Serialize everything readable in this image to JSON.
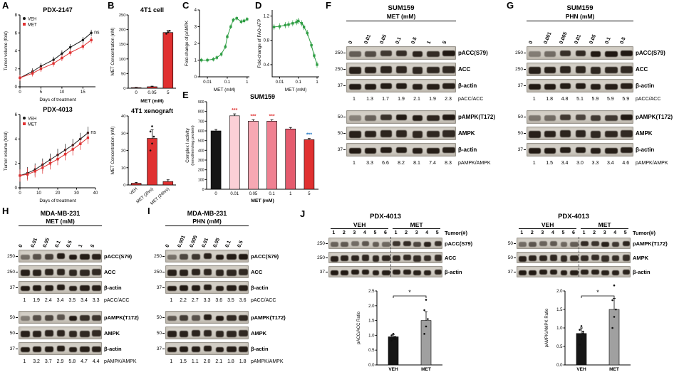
{
  "panels": {
    "A": {
      "label": "A",
      "charts": [
        {
          "type": "line",
          "title": "PDX-2147",
          "ylabel": "Tumor volume (fold)",
          "xlabel": "Days of treatment",
          "annotation": "ns",
          "xlim": [
            0,
            18
          ],
          "ylim": [
            0,
            8
          ],
          "xticks": [
            0,
            5,
            10,
            15
          ],
          "yticks": [
            0,
            2,
            4,
            6,
            8
          ],
          "x": [
            0,
            3,
            5,
            8,
            10,
            12,
            15,
            17
          ],
          "series": [
            {
              "name": "VEH",
              "color": "#1a1a1a",
              "marker": "circle",
              "err": 0.35,
              "values": [
                1,
                1.7,
                2.3,
                3.0,
                3.7,
                4.4,
                5.2,
                6.0
              ]
            },
            {
              "name": "MET",
              "color": "#e03131",
              "marker": "square",
              "err": 0.35,
              "values": [
                1,
                1.5,
                2.0,
                2.6,
                3.2,
                3.8,
                4.5,
                5.2
              ]
            }
          ]
        },
        {
          "type": "line",
          "title": "PDX-4013",
          "ylabel": "Tumor volume (fold)",
          "xlabel": "Days of treatment",
          "annotation": "ns",
          "xlim": [
            0,
            40
          ],
          "ylim": [
            0,
            6
          ],
          "xticks": [
            0,
            10,
            20,
            30,
            40
          ],
          "yticks": [
            0,
            2,
            4,
            6
          ],
          "x": [
            0,
            4,
            8,
            12,
            16,
            20,
            24,
            28,
            32,
            36
          ],
          "series": [
            {
              "name": "VEH",
              "color": "#1a1a1a",
              "marker": "circle",
              "err": 0.5,
              "values": [
                1,
                1.2,
                1.5,
                1.9,
                2.3,
                2.7,
                3.1,
                3.5,
                4.0,
                4.5
              ]
            },
            {
              "name": "MET",
              "color": "#e03131",
              "marker": "square",
              "err": 0.5,
              "values": [
                1,
                1.1,
                1.35,
                1.65,
                2.0,
                2.35,
                2.75,
                3.15,
                3.6,
                4.1
              ]
            }
          ]
        }
      ]
    },
    "B": {
      "label": "B",
      "charts": [
        {
          "type": "bar",
          "title": "4T1 cell",
          "ylabel": "MET Concentration (nM)",
          "xlabel": "MET (mM)",
          "categories": [
            "0",
            "0.05",
            "5"
          ],
          "values": [
            2,
            5,
            190
          ],
          "errors": [
            1,
            2,
            7
          ],
          "points": [
            [],
            [],
            [
              186,
              191,
              196
            ]
          ],
          "colors": [
            "#e03131",
            "#e03131",
            "#e03131"
          ],
          "ylim": [
            0,
            250
          ],
          "yticks": [
            0,
            50,
            100,
            150,
            200,
            250
          ]
        },
        {
          "type": "bar",
          "title": "4T1 xenograft",
          "ylabel": "MET Concentration (nM)",
          "rotate_categories": true,
          "categories": [
            "VEH",
            "MET (2hrs)",
            "MET (24hrs)"
          ],
          "values": [
            1,
            27,
            2
          ],
          "errors": [
            0.5,
            5,
            1
          ],
          "points": [
            [],
            [
              20,
              24,
              28,
              31,
              34
            ],
            []
          ],
          "colors": [
            "#e03131",
            "#e03131",
            "#e03131"
          ],
          "ylim": [
            0,
            40
          ],
          "yticks": [
            0,
            10,
            20,
            30,
            40
          ]
        }
      ]
    },
    "C": {
      "label": "C",
      "chart": {
        "type": "line",
        "logx": true,
        "ylabel": "Fold-change of pAMPK",
        "xlabel": "MET (mM)",
        "xlim": [
          0.004,
          1.3
        ],
        "ylim": [
          0,
          4
        ],
        "yticks": [
          0,
          1,
          2,
          3,
          4
        ],
        "xticks": [
          0.01,
          0.1,
          1
        ],
        "xtick_labels": [
          "0.01",
          "0.1",
          "1"
        ],
        "x": [
          0.005,
          0.01,
          0.02,
          0.03,
          0.05,
          0.08,
          0.1,
          0.15,
          0.2,
          0.3,
          0.5,
          0.7,
          1
        ],
        "series": [
          {
            "name": "pAMPK",
            "color": "#2f9e44",
            "marker": "square",
            "err": 0.13,
            "values": [
              1.0,
              1.0,
              1.05,
              1.15,
              1.35,
              1.8,
              2.4,
              3.0,
              3.4,
              3.5,
              3.3,
              3.35,
              3.45
            ]
          }
        ]
      }
    },
    "D": {
      "label": "D",
      "chart": {
        "type": "line",
        "logx": true,
        "ylabel": "Fold-change of FAO-ATP",
        "xlabel": "MET (mM)",
        "xlim": [
          0.004,
          1.3
        ],
        "ylim": [
          0.2,
          1.3
        ],
        "yticks": [
          0.4,
          0.8,
          1.2
        ],
        "ytick_labels": [
          "0.4",
          "0.8",
          "1.2"
        ],
        "xticks": [
          0.01,
          0.1,
          1
        ],
        "xtick_labels": [
          "0.01",
          "0.1",
          "1"
        ],
        "x": [
          0.005,
          0.01,
          0.02,
          0.03,
          0.05,
          0.08,
          0.1,
          0.15,
          0.2,
          0.3,
          0.5,
          0.7,
          1
        ],
        "series": [
          {
            "name": "FAO-ATP",
            "color": "#2f9e44",
            "marker": "square",
            "err": 0.05,
            "values": [
              1.02,
              1.03,
              1.05,
              1.06,
              1.08,
              1.1,
              1.12,
              1.08,
              1.02,
              0.92,
              0.72,
              0.55,
              0.4
            ]
          }
        ]
      }
    },
    "E": {
      "label": "E",
      "chart": {
        "type": "bar",
        "title": "SUM159",
        "ylabel": "Complex I activity",
        "ylabel2": "(nmol/min/mg protein)",
        "xlabel": "MET (mM)",
        "categories": [
          "0",
          "0.01",
          "0.05",
          "0.1",
          "1",
          "5"
        ],
        "values": [
          600,
          755,
          700,
          700,
          620,
          510
        ],
        "errors": [
          15,
          20,
          15,
          15,
          15,
          12
        ],
        "colors": [
          "#161616",
          "#fbd0d6",
          "#f6a8b3",
          "#ef8091",
          "#e55b6e",
          "#e03131"
        ],
        "ylim": [
          0,
          900
        ],
        "yticks": [
          0,
          100,
          200,
          300,
          400,
          500,
          600,
          700,
          800,
          900
        ],
        "sig": [
          {
            "index": 1,
            "text": "***",
            "color": "#e03131"
          },
          {
            "index": 2,
            "text": "***",
            "color": "#e03131"
          },
          {
            "index": 3,
            "text": "***",
            "color": "#e03131"
          },
          {
            "index": 5,
            "text": "***",
            "color": "#1971c2"
          }
        ]
      }
    },
    "F": {
      "label": "F",
      "title": "SUM159",
      "treatment": "MET (mM)",
      "lanes": [
        "0",
        "0.01",
        "0.05",
        "0.1",
        "0.5",
        "1",
        "5"
      ],
      "groups": [
        {
          "rows": [
            {
              "marker": "250",
              "label": "pACC(S79)",
              "kind": "phospho"
            },
            {
              "marker": "250",
              "label": "ACC",
              "kind": "total"
            },
            {
              "marker": "37",
              "label": "β-actin",
              "kind": "actin"
            }
          ],
          "ratios": [
            "1",
            "1.3",
            "1.7",
            "1.9",
            "2.1",
            "1.9",
            "2.3"
          ],
          "ratio_label": "pACC/ACC"
        },
        {
          "rows": [
            {
              "marker": "50",
              "label": "pAMPK(T172)",
              "kind": "phospho"
            },
            {
              "marker": "50",
              "label": "AMPK",
              "kind": "total"
            },
            {
              "marker": "37",
              "label": "β-actin",
              "kind": "actin"
            }
          ],
          "ratios": [
            "1",
            "3.3",
            "6.6",
            "8.2",
            "8.1",
            "7.4",
            "8.3"
          ],
          "ratio_label": "pAMPK/AMPK"
        }
      ]
    },
    "G": {
      "label": "G",
      "title": "SUM159",
      "treatment": "PHN (mM)",
      "lanes": [
        "0",
        "0.001",
        "0.005",
        "0.01",
        "0.05",
        "0.1",
        "0.5"
      ],
      "groups": [
        {
          "rows": [
            {
              "marker": "250",
              "label": "pACC(S79)",
              "kind": "phospho"
            },
            {
              "marker": "250",
              "label": "ACC",
              "kind": "total"
            },
            {
              "marker": "37",
              "label": "β-actin",
              "kind": "actin"
            }
          ],
          "ratios": [
            "1",
            "1.8",
            "4.8",
            "5.1",
            "5.9",
            "5.9",
            "5.9"
          ],
          "ratio_label": "pACC/ACC"
        },
        {
          "rows": [
            {
              "marker": "50",
              "label": "pAMPK(T172)",
              "kind": "phospho"
            },
            {
              "marker": "50",
              "label": "AMPK",
              "kind": "total"
            },
            {
              "marker": "37",
              "label": "β-actin",
              "kind": "actin"
            }
          ],
          "ratios": [
            "1",
            "1.5",
            "3.4",
            "3.0",
            "3.3",
            "3.4",
            "4.6"
          ],
          "ratio_label": "pAMPK/AMPK"
        }
      ]
    },
    "H": {
      "label": "H",
      "title": "MDA-MB-231",
      "treatment": "MET (mM)",
      "lanes": [
        "0",
        "0.01",
        "0.05",
        "0.1",
        "0.5",
        "1",
        "5"
      ],
      "groups": [
        {
          "rows": [
            {
              "marker": "250",
              "label": "pACC(S79)",
              "kind": "phospho"
            },
            {
              "marker": "250",
              "label": "ACC",
              "kind": "total"
            },
            {
              "marker": "37",
              "label": "β-actin",
              "kind": "actin"
            }
          ],
          "ratios": [
            "1",
            "1.9",
            "2.4",
            "3.4",
            "3.5",
            "3.4",
            "3.3"
          ],
          "ratio_label": "pACC/ACC"
        },
        {
          "rows": [
            {
              "marker": "50",
              "label": "pAMPK(T172)",
              "kind": "phospho"
            },
            {
              "marker": "50",
              "label": "AMPK",
              "kind": "total"
            },
            {
              "marker": "37",
              "label": "β-actin",
              "kind": "actin"
            }
          ],
          "ratios": [
            "1",
            "3.2",
            "3.7",
            "2.9",
            "5.8",
            "4.7",
            "4.4"
          ],
          "ratio_label": "pAMPK/AMPK"
        }
      ]
    },
    "I": {
      "label": "I",
      "title": "MDA-MB-231",
      "treatment": "PHN (mM)",
      "lanes": [
        "0",
        "0.001",
        "0.005",
        "0.01",
        "0.05",
        "0.1",
        "0.5"
      ],
      "groups": [
        {
          "rows": [
            {
              "marker": "250",
              "label": "pACC(S79)",
              "kind": "phospho"
            },
            {
              "marker": "250",
              "label": "ACC",
              "kind": "total"
            },
            {
              "marker": "37",
              "label": "β-actin",
              "kind": "actin"
            }
          ],
          "ratios": [
            "1",
            "2.2",
            "2.7",
            "3.3",
            "3.6",
            "3.5",
            "3.6"
          ],
          "ratio_label": "pACC/ACC"
        },
        {
          "rows": [
            {
              "marker": "50",
              "label": "pAMPK(T172)",
              "kind": "phospho"
            },
            {
              "marker": "50",
              "label": "AMPK",
              "kind": "total"
            },
            {
              "marker": "37",
              "label": "β-actin",
              "kind": "actin"
            }
          ],
          "ratios": [
            "1",
            "1.5",
            "1.1",
            "2.0",
            "2.1",
            "1.8",
            "1.8"
          ],
          "ratio_label": "pAMPK/AMPK"
        }
      ]
    },
    "J": {
      "label": "J",
      "subpanels": [
        {
          "title": "PDX-4013",
          "lane_axis_label": "Tumor(#)",
          "groups": [
            {
              "name": "VEH",
              "lanes": [
                "1",
                "2",
                "3",
                "4",
                "5",
                "6"
              ]
            },
            {
              "name": "MET",
              "lanes": [
                "1",
                "2",
                "3",
                "4",
                "5"
              ]
            }
          ],
          "rows": [
            {
              "marker": "250",
              "label": "pACC(S79)",
              "kind": "phospho",
              "intensities": [
                0.55,
                0.6,
                0.5,
                0.62,
                0.58,
                0.52,
                0.8,
                0.85,
                0.7,
                0.9,
                0.82
              ]
            },
            {
              "marker": "250",
              "label": "ACC",
              "kind": "total"
            },
            {
              "marker": "37",
              "label": "β-actin",
              "kind": "actin"
            }
          ],
          "chart": {
            "type": "bar",
            "ylabel": "pACC/ACC Ratio",
            "categories": [
              "VEH",
              "MET"
            ],
            "values": [
              0.95,
              1.5
            ],
            "errors": [
              0.08,
              0.3
            ],
            "colors": [
              "#161616",
              "#a0a0a0"
            ],
            "points": [
              [
                0.82,
                0.9,
                0.95,
                1.0,
                1.05,
                0.88
              ],
              [
                1.05,
                1.3,
                1.55,
                1.85,
                2.2
              ]
            ],
            "ylim": [
              0,
              2.5
            ],
            "yticks": [
              0,
              0.5,
              1,
              1.5,
              2,
              2.5
            ],
            "ytick_labels": [
              "0.0",
              "0.5",
              "1.0",
              "1.5",
              "2.0",
              "2.5"
            ],
            "sig": "*"
          }
        },
        {
          "title": "PDX-4013",
          "lane_axis_label": "Tumor(#)",
          "groups": [
            {
              "name": "VEH",
              "lanes": [
                "1",
                "2",
                "3",
                "4",
                "5",
                "6"
              ]
            },
            {
              "name": "MET",
              "lanes": [
                "1",
                "2",
                "3",
                "4",
                "5"
              ]
            }
          ],
          "rows": [
            {
              "marker": "50",
              "label": "pAMPK(T172)",
              "kind": "phospho",
              "intensities": [
                0.5,
                0.62,
                0.55,
                0.6,
                0.52,
                0.58,
                0.85,
                0.8,
                0.9,
                0.78,
                0.88
              ]
            },
            {
              "marker": "50",
              "label": "AMPK",
              "kind": "total"
            },
            {
              "marker": "37",
              "label": "β-actin",
              "kind": "actin"
            }
          ],
          "chart": {
            "type": "bar",
            "ylabel": "pAMPK/AMPK Ratio",
            "categories": [
              "VEH",
              "MET"
            ],
            "values": [
              0.85,
              1.5
            ],
            "errors": [
              0.15,
              0.3
            ],
            "colors": [
              "#161616",
              "#a0a0a0"
            ],
            "points": [
              [
                0.55,
                0.7,
                0.85,
                0.95,
                1.05,
                0.9
              ],
              [
                1.0,
                1.3,
                1.5,
                1.75,
                2.15
              ]
            ],
            "ylim": [
              0,
              2.0
            ],
            "yticks": [
              0,
              0.5,
              1,
              1.5,
              2
            ],
            "ytick_labels": [
              "0.0",
              "0.5",
              "1.0",
              "1.5",
              "2.0"
            ],
            "sig": "*"
          }
        }
      ]
    }
  }
}
